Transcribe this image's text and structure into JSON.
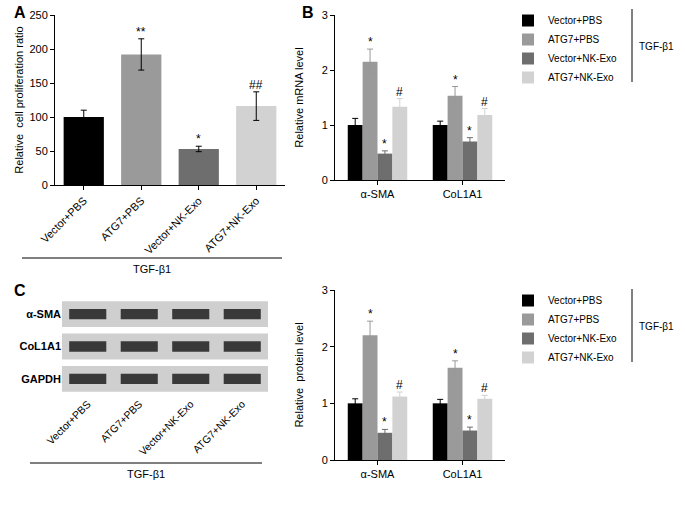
{
  "chart_data": [
    {
      "panel": "A",
      "type": "bar",
      "y_label": "Relative  cell proliferation ratio",
      "categories": [
        "Vector+PBS",
        "ATG7+PBS",
        "Vector+NK-Exo",
        "ATG7+NK-Exo"
      ],
      "values": [
        100,
        192,
        53,
        116
      ],
      "errors": [
        10,
        23,
        4,
        21
      ],
      "significance": [
        null,
        "**",
        "*",
        "##"
      ],
      "colors": [
        "#000000",
        "#9a9a9a",
        "#6e6e6e",
        "#d2d2d2"
      ],
      "ylim": [
        0,
        250
      ],
      "yticks": [
        0,
        50,
        100,
        150,
        200,
        250
      ],
      "grid": false,
      "group_label": "TGF-β1"
    },
    {
      "panel": "B",
      "type": "bar",
      "y_label": "Relative mRNA level",
      "categories": [
        "α-SMA",
        "CoL1A1"
      ],
      "series": [
        {
          "name": "Vector+PBS",
          "color": "#000000",
          "values": [
            1.0,
            1.0
          ],
          "errors": [
            0.12,
            0.07
          ],
          "significance": [
            null,
            null
          ]
        },
        {
          "name": "ATG7+PBS",
          "color": "#9a9a9a",
          "values": [
            2.15,
            1.53
          ],
          "errors": [
            0.23,
            0.17
          ],
          "significance": [
            "*",
            "*"
          ]
        },
        {
          "name": "Vector+NK-Exo",
          "color": "#6e6e6e",
          "values": [
            0.48,
            0.7
          ],
          "errors": [
            0.05,
            0.07
          ],
          "significance": [
            "*",
            "*"
          ]
        },
        {
          "name": "ATG7+NK-Exo",
          "color": "#d2d2d2",
          "values": [
            1.33,
            1.18
          ],
          "errors": [
            0.15,
            0.12
          ],
          "significance": [
            "#",
            "#"
          ]
        }
      ],
      "ylim": [
        0,
        3
      ],
      "yticks": [
        0,
        1,
        2,
        3
      ],
      "grid": false,
      "legend": "upper right",
      "group_label": "TGF-β1"
    },
    {
      "type": "bar",
      "y_label": "Relative  protein level",
      "categories": [
        "α-SMA",
        "CoL1A1"
      ],
      "series": [
        {
          "name": "Vector+PBS",
          "color": "#000000",
          "values": [
            1.0,
            1.0
          ],
          "errors": [
            0.08,
            0.07
          ],
          "significance": [
            null,
            null
          ]
        },
        {
          "name": "ATG7+PBS",
          "color": "#9a9a9a",
          "values": [
            2.2,
            1.63
          ],
          "errors": [
            0.25,
            0.12
          ],
          "significance": [
            "*",
            "*"
          ]
        },
        {
          "name": "Vector+NK-Exo",
          "color": "#6e6e6e",
          "values": [
            0.48,
            0.52
          ],
          "errors": [
            0.06,
            0.06
          ],
          "significance": [
            "*",
            "*"
          ]
        },
        {
          "name": "ATG7+NK-Exo",
          "color": "#d2d2d2",
          "values": [
            1.12,
            1.08
          ],
          "errors": [
            0.08,
            0.06
          ],
          "significance": [
            "#",
            "#"
          ]
        }
      ],
      "ylim": [
        0,
        3
      ],
      "yticks": [
        0,
        1,
        2,
        3
      ],
      "grid": false,
      "legend": "upper right",
      "group_label": "TGF-β1"
    }
  ],
  "blot": {
    "panel": "C",
    "rows": [
      "α-SMA",
      "CoL1A1",
      "GAPDH"
    ],
    "lanes": [
      "Vector+PBS",
      "ATG7+PBS",
      "Vector+NK-Exo",
      "ATG7+NK-Exo"
    ],
    "group_label": "TGF-β1"
  }
}
